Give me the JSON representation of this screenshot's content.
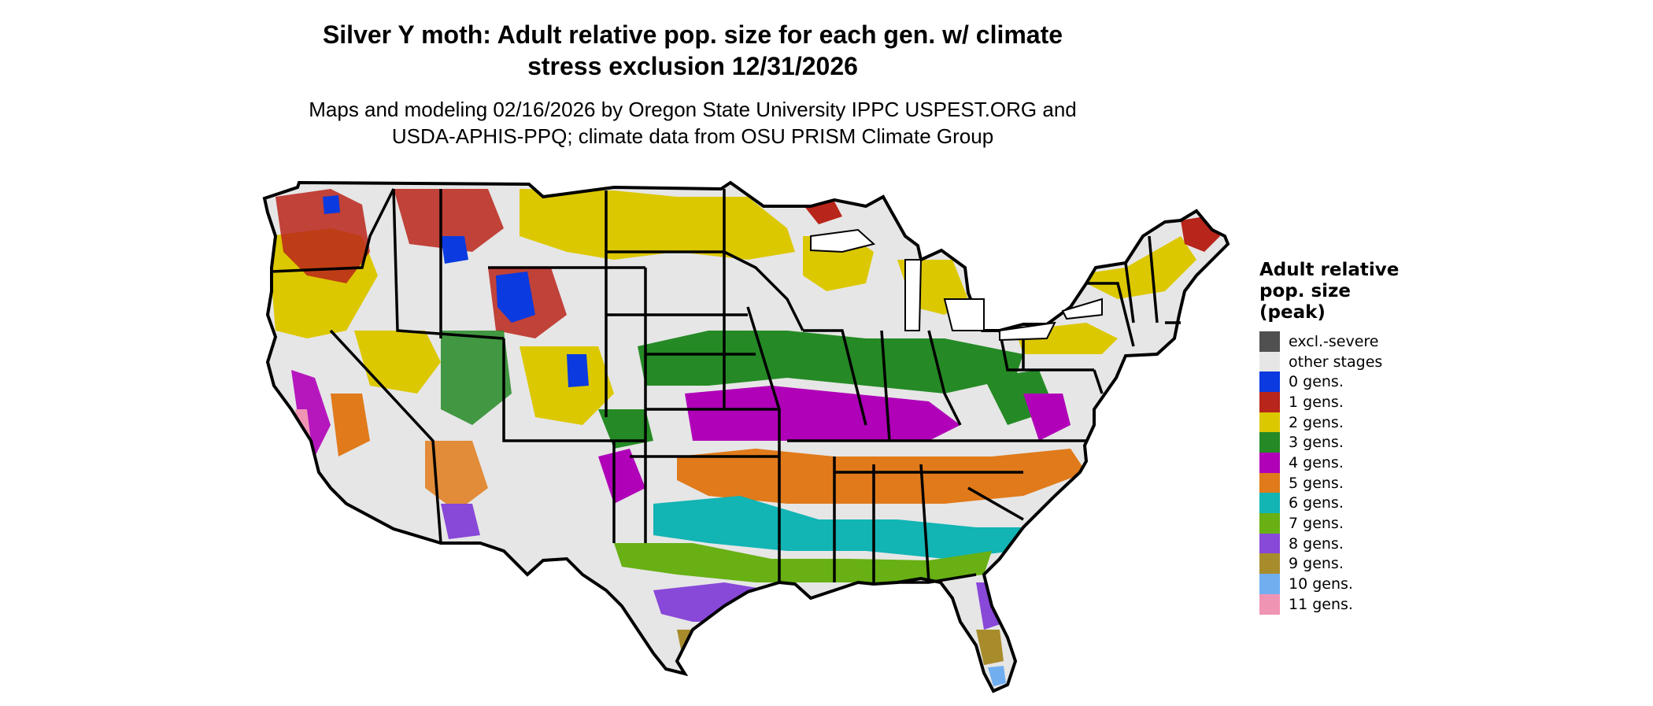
{
  "title": {
    "line1": "Silver Y moth: Adult relative pop. size for each gen. w/ climate",
    "line2": "stress exclusion 12/31/2026"
  },
  "subtitle": {
    "line1": "Maps and modeling 02/16/2026 by Oregon State University IPPC USPEST.ORG and",
    "line2": "USDA-APHIS-PPQ; climate data from OSU PRISM Climate Group"
  },
  "legend": {
    "title_lines": [
      "Adult relative",
      "pop. size",
      "(peak)"
    ],
    "items": [
      {
        "label": "excl.-severe",
        "color": "#505050"
      },
      {
        "label": "other stages",
        "color": "#e6e6e6"
      },
      {
        "label": "0 gens.",
        "color": "#0a3ae0"
      },
      {
        "label": "1 gens.",
        "color": "#b8251a"
      },
      {
        "label": "2 gens.",
        "color": "#dcc800"
      },
      {
        "label": "3 gens.",
        "color": "#258a25"
      },
      {
        "label": "4 gens.",
        "color": "#b000b8"
      },
      {
        "label": "5 gens.",
        "color": "#e07a1a"
      },
      {
        "label": "6 gens.",
        "color": "#12b4b4"
      },
      {
        "label": "7 gens.",
        "color": "#68b014"
      },
      {
        "label": "8 gens.",
        "color": "#8848d8"
      },
      {
        "label": "9 gens.",
        "color": "#a88c2c"
      },
      {
        "label": "10 gens.",
        "color": "#70aef0"
      },
      {
        "label": "11 gens.",
        "color": "#f094b4"
      }
    ]
  }
}
